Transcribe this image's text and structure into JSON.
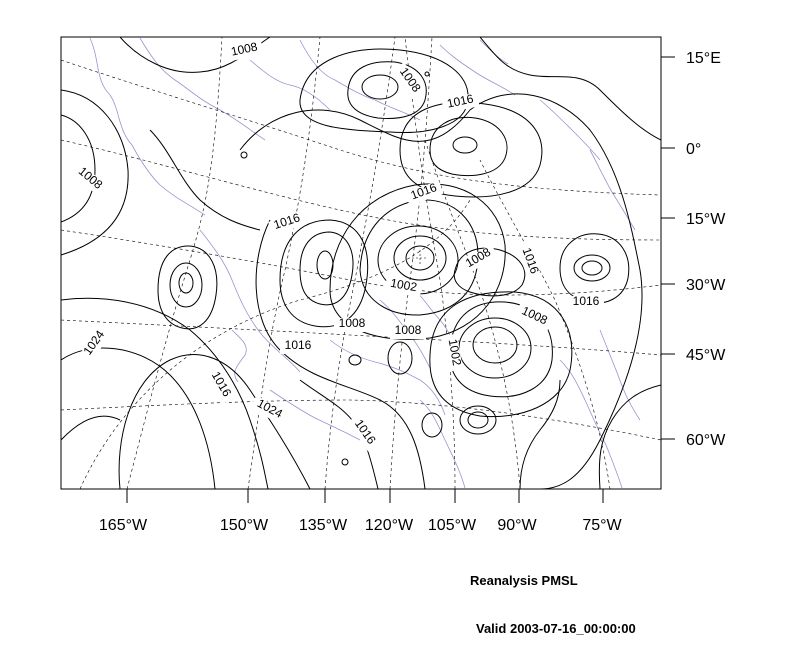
{
  "map": {
    "caption_title": "Reanalysis PMSL",
    "caption_valid": "Valid 2003-07-16_00:00:00",
    "lon_labels": [
      "165°W",
      "150°W",
      "135°W",
      "120°W",
      "105°W",
      "90°W",
      "75°W"
    ],
    "lat_labels": [
      "15°E",
      "0°",
      "15°W",
      "30°W",
      "45°W",
      "60°W"
    ],
    "contour_labels": [
      "1008",
      "1008",
      "1016",
      "1008",
      "1016",
      "1016",
      "1008",
      "1016",
      "1002",
      "1016",
      "1008",
      "1008",
      "1008",
      "1016",
      "1002",
      "1024",
      "1016",
      "1024",
      "1016"
    ],
    "colors": {
      "contour": "#000000",
      "coastline": "#a58ecf",
      "grid": "#000000"
    }
  }
}
